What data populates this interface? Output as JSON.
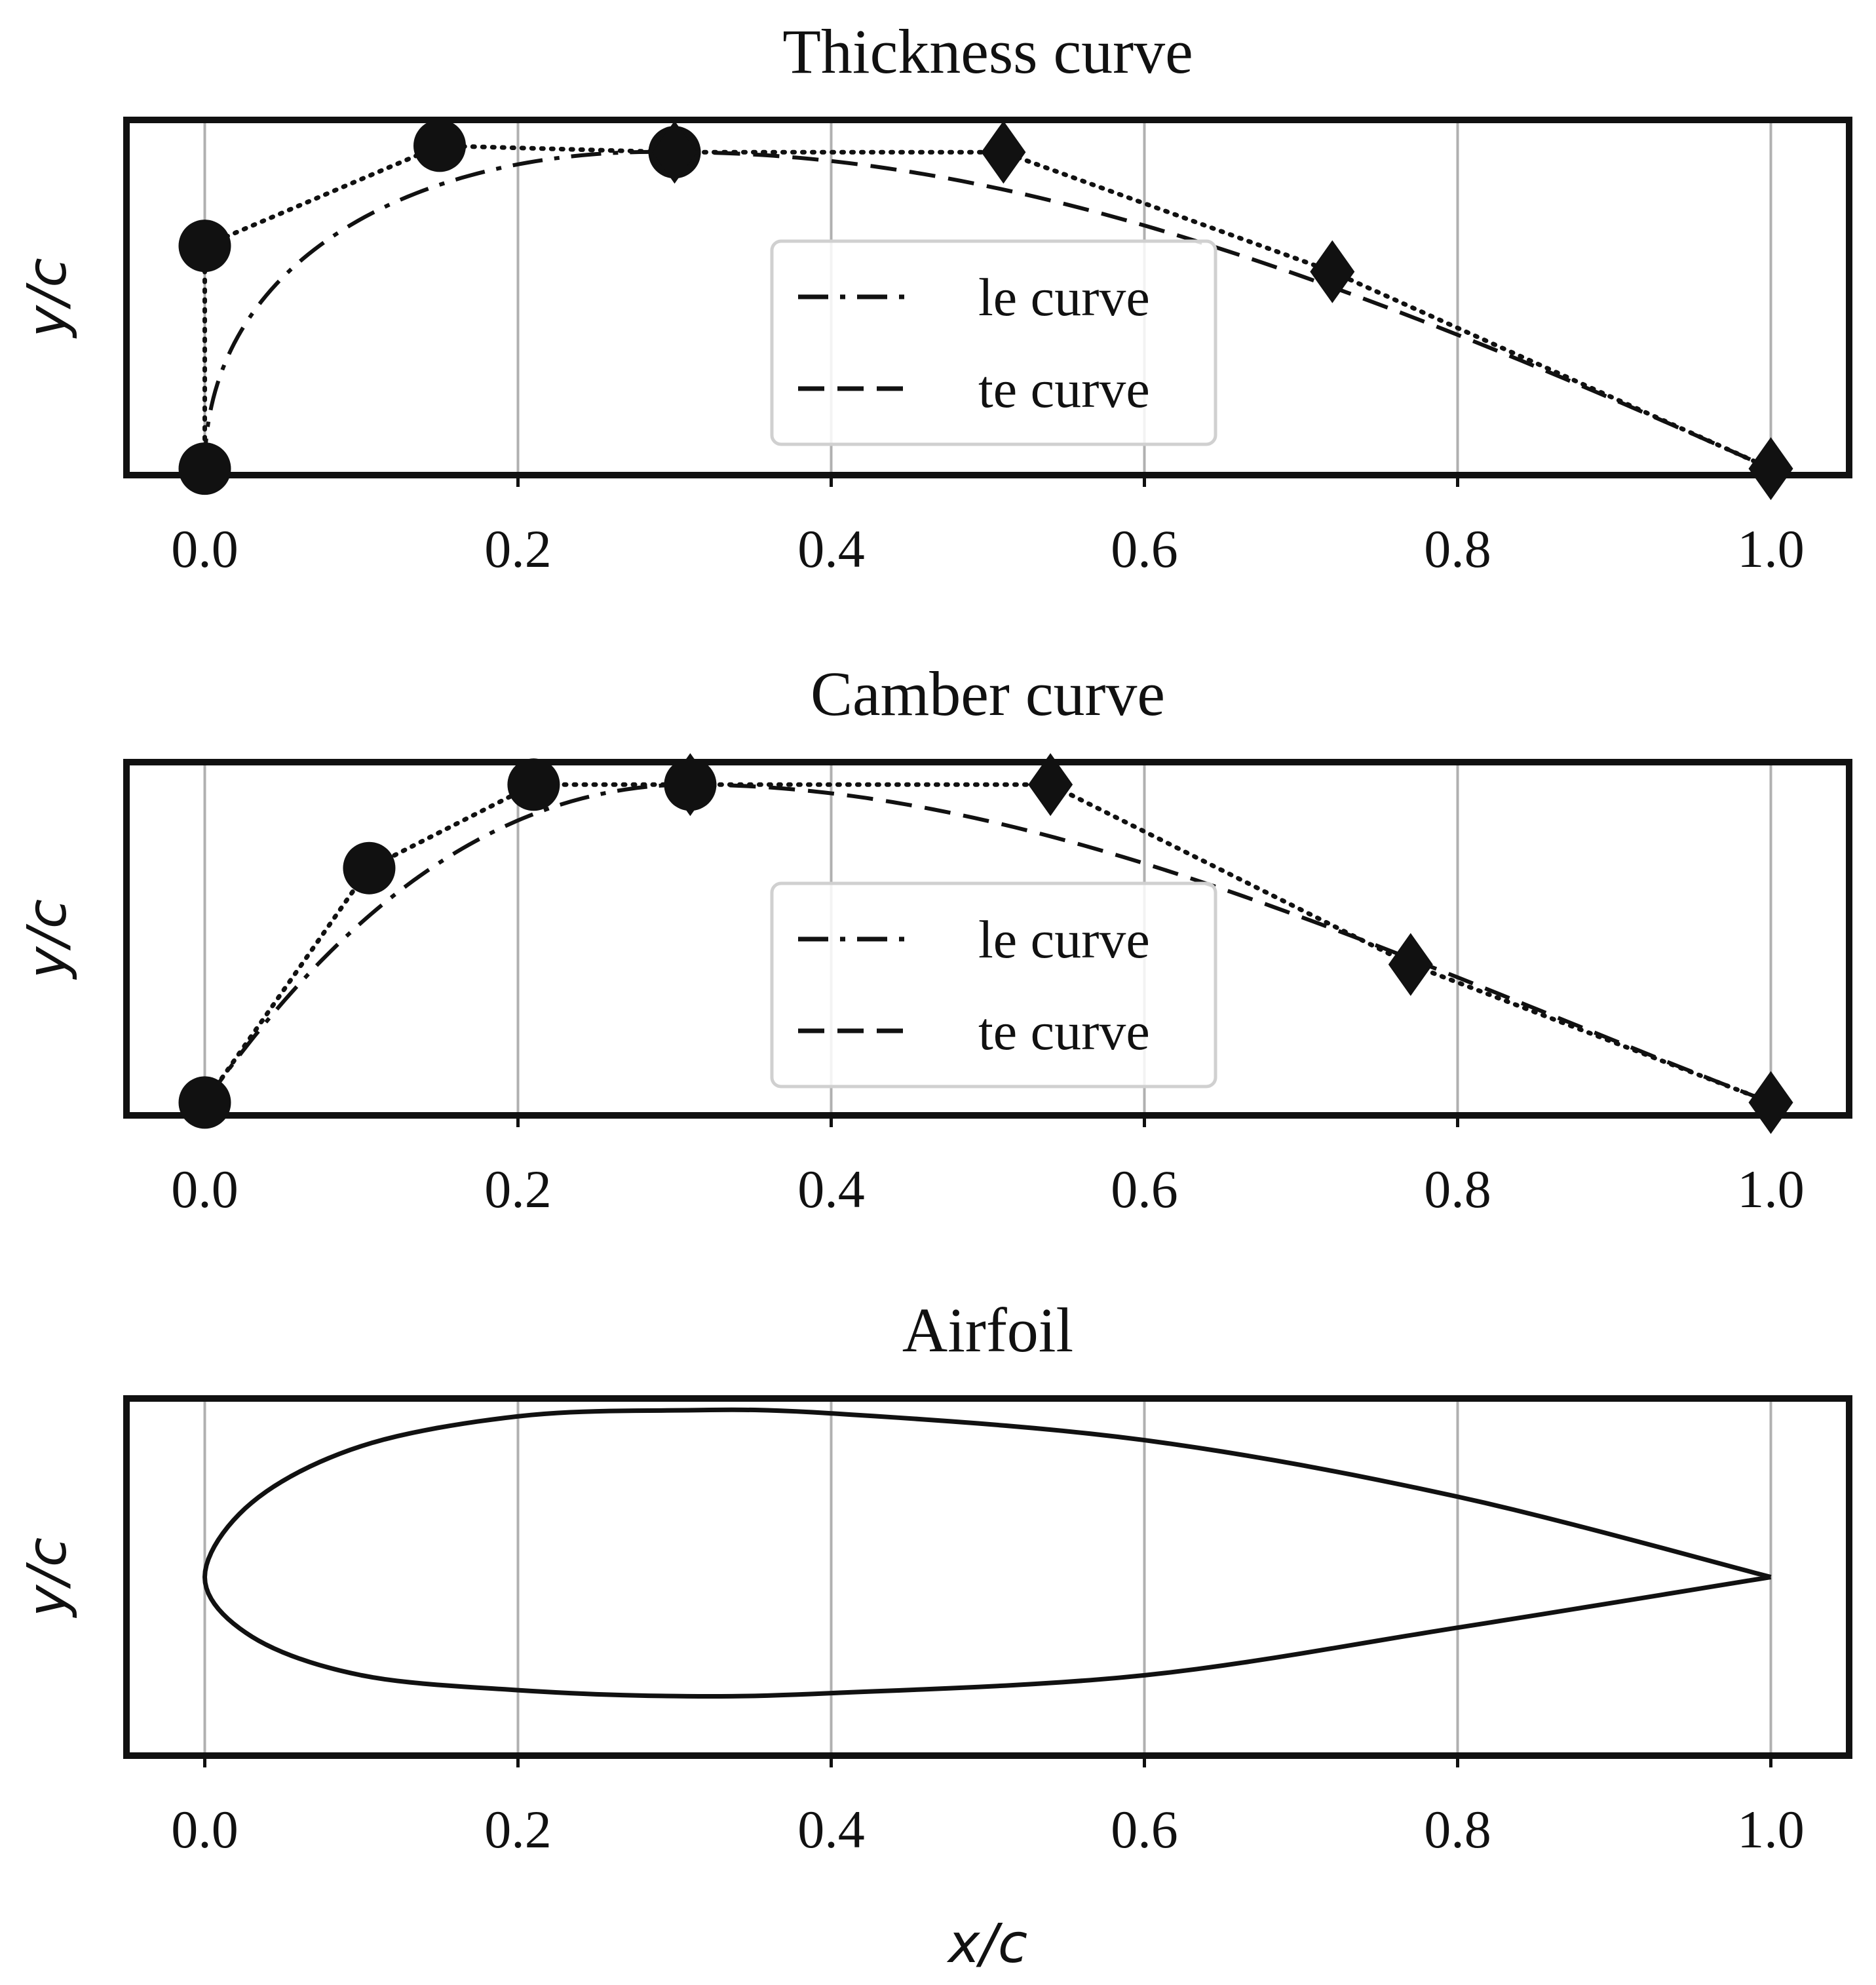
{
  "chart_data": [
    {
      "type": "line",
      "title": "Thickness curve",
      "xlabel": "",
      "ylabel": "y/c",
      "xlim": [
        -0.05,
        1.05
      ],
      "ylim": [
        0,
        1.1
      ],
      "xticks": [
        0.0,
        0.2,
        0.4,
        0.6,
        0.8,
        1.0
      ],
      "xtick_labels": [
        "0.0",
        "0.2",
        "0.4",
        "0.6",
        "0.8",
        "1.0"
      ],
      "grid": "vertical",
      "legend_position": "center",
      "series": [
        {
          "name": "le curve",
          "style": "dashdot",
          "control_points": [
            [
              0.0,
              0.02
            ],
            [
              0.0,
              0.71
            ],
            [
              0.15,
              1.02
            ],
            [
              0.3,
              1.0
            ]
          ],
          "control_marker": "circle"
        },
        {
          "name": "te curve",
          "style": "dashed",
          "control_points": [
            [
              0.3,
              1.0
            ],
            [
              0.51,
              1.0
            ],
            [
              0.72,
              0.63
            ],
            [
              1.0,
              0.02
            ]
          ],
          "control_marker": "diamond"
        }
      ]
    },
    {
      "type": "line",
      "title": "Camber curve",
      "xlabel": "",
      "ylabel": "y/c",
      "xlim": [
        -0.05,
        1.05
      ],
      "ylim": [
        0,
        1.1
      ],
      "xticks": [
        0.0,
        0.2,
        0.4,
        0.6,
        0.8,
        1.0
      ],
      "xtick_labels": [
        "0.0",
        "0.2",
        "0.4",
        "0.6",
        "0.8",
        "1.0"
      ],
      "grid": "vertical",
      "legend_position": "center",
      "series": [
        {
          "name": "le curve",
          "style": "dashdot",
          "control_points": [
            [
              0.0,
              0.04
            ],
            [
              0.105,
              0.77
            ],
            [
              0.21,
              1.03
            ],
            [
              0.31,
              1.03
            ]
          ],
          "control_marker": "circle"
        },
        {
          "name": "te curve",
          "style": "dashed",
          "control_points": [
            [
              0.31,
              1.03
            ],
            [
              0.54,
              1.03
            ],
            [
              0.77,
              0.47
            ],
            [
              1.0,
              0.04
            ]
          ],
          "control_marker": "diamond"
        }
      ]
    },
    {
      "type": "line",
      "title": "Airfoil",
      "xlabel": "x/c",
      "ylabel": "y/c",
      "xlim": [
        -0.05,
        1.05
      ],
      "ylim": [
        -0.6,
        0.6
      ],
      "xticks": [
        0.0,
        0.2,
        0.4,
        0.6,
        0.8,
        1.0
      ],
      "xtick_labels": [
        "0.0",
        "0.2",
        "0.4",
        "0.6",
        "0.8",
        "1.0"
      ],
      "grid": "vertical",
      "series": [
        {
          "name": "",
          "style": "solid",
          "description_points": [
            [
              1.0,
              0.0
            ],
            [
              0.8,
              0.27
            ],
            [
              0.6,
              0.46
            ],
            [
              0.4,
              0.55
            ],
            [
              0.3,
              0.56
            ],
            [
              0.2,
              0.54
            ],
            [
              0.1,
              0.44
            ],
            [
              0.03,
              0.25
            ],
            [
              0.0,
              0.0
            ],
            [
              0.03,
              -0.2
            ],
            [
              0.1,
              -0.33
            ],
            [
              0.2,
              -0.38
            ],
            [
              0.3,
              -0.4
            ],
            [
              0.4,
              -0.39
            ],
            [
              0.6,
              -0.33
            ],
            [
              0.8,
              -0.17
            ],
            [
              1.0,
              0.0
            ]
          ]
        }
      ]
    }
  ]
}
